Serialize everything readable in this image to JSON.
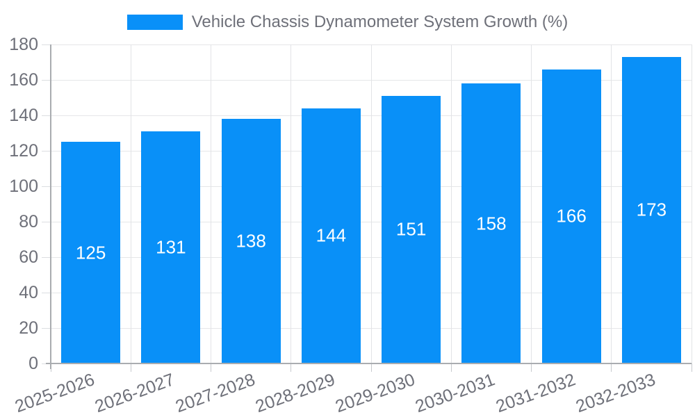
{
  "chart_data": {
    "type": "bar",
    "title": "Vehicle Chassis Dynamometer System Growth (%)",
    "legend": [
      "Vehicle Chassis Dynamometer System Growth (%)"
    ],
    "legend_position": "top-center",
    "categories": [
      "2025-2026",
      "2026-2027",
      "2027-2028",
      "2028-2029",
      "2029-2030",
      "2030-2031",
      "2031-2032",
      "2032-2033"
    ],
    "values": [
      125,
      131,
      138,
      144,
      151,
      158,
      166,
      173
    ],
    "bar_value_labels": [
      "125",
      "131",
      "138",
      "144",
      "151",
      "158",
      "166",
      "173"
    ],
    "xlabel": "",
    "ylabel": "",
    "ylim": [
      0,
      180
    ],
    "yticks": [
      0,
      20,
      40,
      60,
      80,
      100,
      120,
      140,
      160,
      180
    ],
    "grid": true,
    "bar_color": "#0990f8",
    "bar_label_color": "#ffffff",
    "text_color": "#6e7079"
  }
}
